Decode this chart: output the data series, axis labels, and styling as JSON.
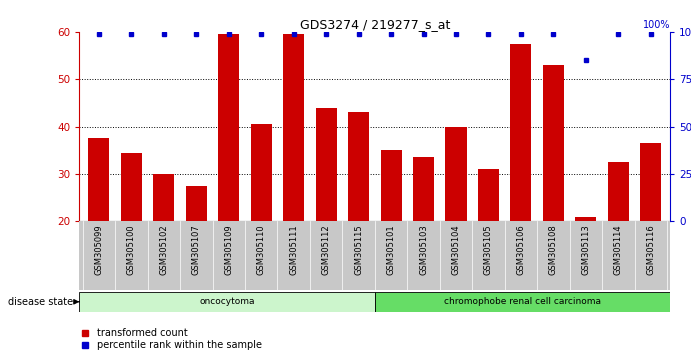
{
  "title": "GDS3274 / 219277_s_at",
  "samples": [
    "GSM305099",
    "GSM305100",
    "GSM305102",
    "GSM305107",
    "GSM305109",
    "GSM305110",
    "GSM305111",
    "GSM305112",
    "GSM305115",
    "GSM305101",
    "GSM305103",
    "GSM305104",
    "GSM305105",
    "GSM305106",
    "GSM305108",
    "GSM305113",
    "GSM305114",
    "GSM305116"
  ],
  "red_values": [
    37.5,
    34.5,
    30.0,
    27.5,
    59.5,
    40.5,
    59.5,
    44.0,
    43.0,
    35.0,
    33.5,
    40.0,
    31.0,
    57.5,
    53.0,
    21.0,
    32.5,
    36.5
  ],
  "percentile_values": [
    100,
    100,
    100,
    100,
    100,
    100,
    100,
    100,
    100,
    100,
    100,
    100,
    100,
    100,
    100,
    85,
    100,
    100
  ],
  "ylim_left": [
    20,
    60
  ],
  "ylim_right": [
    0,
    100
  ],
  "yticks_left": [
    20,
    30,
    40,
    50,
    60
  ],
  "yticks_right": [
    0,
    25,
    50,
    75,
    100
  ],
  "groups": [
    {
      "label": "oncocytoma",
      "start": 0,
      "end": 9,
      "color": "#ccf5cc"
    },
    {
      "label": "chromophobe renal cell carcinoma",
      "start": 9,
      "end": 18,
      "color": "#66dd66"
    }
  ],
  "disease_state_label": "disease state",
  "legend_items": [
    {
      "color": "#cc0000",
      "label": "transformed count"
    },
    {
      "color": "#0000cc",
      "label": "percentile rank within the sample"
    }
  ],
  "bar_color": "#cc0000",
  "percentile_color": "#0000cc",
  "axis_label_color_left": "#cc0000",
  "axis_label_color_right": "#0000cc",
  "xticklabel_bg": "#c8c8c8"
}
